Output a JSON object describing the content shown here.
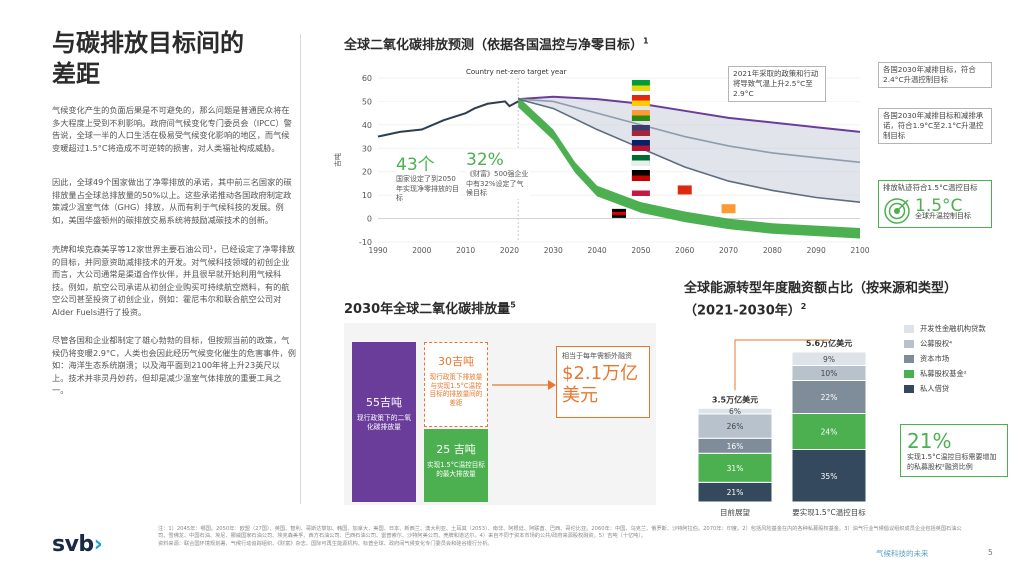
{
  "page": {
    "title_line1": "与碳排放目标间的",
    "title_line2": "差距",
    "paragraphs": [
      "气候变化产生的负面后果是不可避免的，那么问题是普通民众将在多大程度上受到不利影响。政府间气候变化专门委员会（IPCC）警告说，全球一半的人口生活在极易受气候变化影响的地区，而气候变暖超过1.5°C将造成不可逆转的损害，对人类福祉构成威胁。",
      "因此，全球49个国家做出了净零排放的承诺，其中前三名国家的碳排放量占全球总排放量的50%以上。这些承诺推动各国政府制定政策减少温室气体（GHG）排放，从而有利于气候科技的发展。例如，美国华盛顿州的碳排放交易系统将鼓励减碳技术的创新。",
      "壳牌和埃克森美孚等12家世界主要石油公司¹，已经设定了净零排放的目标，并同意资助减排技术的开发。对气候科技领域的初创企业而言，大公司通常是渠道合作伙伴，并且很早就开始利用气候科技。例如，航空公司承诺从初创企业购买可持续航空燃料，有的航空公司甚至投资了初创企业，例如：霍尼韦尔和联合航空公司对Alder Fuels进行了投资。",
      "尽管各国和企业都制定了雄心勃勃的目标，但按照当前的政策，气候仍将变暖2.9°C，人类也会因此经历气候变化催生的危害事件，例如：海洋生态系统崩溃；以及海平面到2100年将上升23英尺以上。技术并非灵丹妙药，但却是减少温室气体排放的重要工具之一。"
    ],
    "logo_main": "svb",
    "logo_chevron": "›",
    "footer_right": "气候科技的未来",
    "page_number": "5",
    "notes": "注：1）2045年：哪国。2050年：欧盟（27国）、英国、智利、哥斯达黎加、韩国、加拿大、美国、日本、新西兰、澳大利亚、土耳其（2053）、南非、阿根廷、阿联酋、巴西、哥伦比亚。2060年：中国、乌克兰、俄罗斯、沙特阿拉伯。2070年：印度。2）包括风险基金在内的各种私募股权基金。3）油气行业气候倡议组织成员企业包括英国石油公司、雪佛龙、中国石油、埃尼、挪威国家石油公司、埃克森美孚、西方石油公司、巴西石油公司、雷普索尔、沙特阿美公司、壳牌和道达尔。4）来自不同于资本市场的公共/政府来源股权融资。5）吉吨（十亿吨）。",
    "source": "资料来源：联合国环境规划署、气候行动追踪组织、《财富》杂志、国际可再生能源机构、标普全球、政府间气候变化专门委员会和硅谷银行分析。"
  },
  "top_chart": {
    "title": "全球二氧化碳排放预测（依据各国温控与净零目标）",
    "title_sup": "1",
    "ylabel": "吉吨",
    "net_zero_label": "Country net-zero target year",
    "callout_2021": "2021年采取的政策和行动将导致气温上升2.5°C至2.9°C",
    "callout_2030_a": "各国2030年减排目标，符合2.4°C升温控制目标",
    "callout_2030_b": "各国2030年减排目标和减排承诺，符合1.9°C至2.1°C升温控制目标",
    "callout_15_title": "排放轨迹符合1.5°C温控目标",
    "target_value": "1.5°C",
    "target_caption": "全球升温控制目标",
    "stat1_value": "43个",
    "stat1_caption": "国家设定了到2050年实现净零排放的目标",
    "stat2_value": "32%",
    "stat2_caption": "《财富》500强企业中有32%设定了气候目标",
    "colors": {
      "history": "#2c3e50",
      "pledges": "#9aa7b8",
      "target15": "#4caf50",
      "policy": "#6a3d9a",
      "accent": "#4caf50"
    }
  },
  "chart_data": [
    {
      "type": "line",
      "title": "全球二氧化碳排放预测（依据各国温控与净零目标）",
      "ylabel": "吉吨",
      "xlim": [
        1990,
        2100
      ],
      "ylim": [
        -10,
        60
      ],
      "x_ticks": [
        1990,
        2000,
        2010,
        2020,
        2030,
        2040,
        2050,
        2060,
        2070,
        2080,
        2090,
        2100
      ],
      "y_ticks": [
        -10,
        0,
        10,
        20,
        30,
        40,
        50,
        60
      ],
      "series": [
        {
          "name": "history",
          "x": [
            1990,
            1995,
            2000,
            2005,
            2010,
            2012,
            2015,
            2019,
            2020,
            2022
          ],
          "y": [
            35,
            37,
            38,
            42,
            45,
            47,
            49,
            50,
            48,
            50
          ]
        },
        {
          "name": "policy",
          "x": [
            2022,
            2030,
            2040,
            2050,
            2060,
            2070,
            2080,
            2090,
            2100
          ],
          "y": [
            51,
            52,
            51,
            49,
            46,
            43,
            41,
            39,
            37
          ]
        },
        {
          "name": "2.4C",
          "x": [
            2022,
            2030,
            2040,
            2050,
            2060,
            2070,
            2080,
            2090,
            2100
          ],
          "y": [
            51,
            50,
            45,
            40,
            35,
            31,
            28,
            26,
            24
          ]
        },
        {
          "name": "1.9-2.1C",
          "x": [
            2022,
            2030,
            2040,
            2050,
            2060,
            2070,
            2080,
            2090,
            2100
          ],
          "y": [
            51,
            47,
            38,
            30,
            22,
            16,
            12,
            9,
            7
          ]
        },
        {
          "name": "1.5C",
          "x": [
            2022,
            2030,
            2035,
            2040,
            2050,
            2060,
            2070,
            2080,
            2090,
            2100
          ],
          "y": [
            50,
            36,
            22,
            12,
            5,
            1,
            -2,
            -4,
            -5,
            -6
          ]
        }
      ]
    },
    {
      "type": "bar",
      "title": "2030年全球二氧化碳排放量",
      "title_sup": "5",
      "categories": [
        "现行政策下的二氧化碳排放量",
        "现行政策下排放量与实现1.5°C温控目标的排放量间的差距",
        "实现1.5°C温控目标的最大排放量"
      ],
      "values": [
        55,
        30,
        25
      ],
      "labels": [
        "55吉吨",
        "30吉吨",
        "25 吉吨"
      ],
      "side_note": "相当于每年需额外融资",
      "side_value": "$2.1万亿美元"
    },
    {
      "type": "bar",
      "title": "全球能源转型年度融资额占比（按来源和类型）（2021-2030年）",
      "title_sup": "2",
      "categories": [
        "目前展望",
        "要实现1.5°C温控目标"
      ],
      "totals": [
        "3.5万亿美元",
        "5.6万亿美元"
      ],
      "total_values": [
        3.5,
        5.6
      ],
      "series": [
        {
          "name": "私人借贷",
          "values": [
            21,
            35
          ],
          "color": "#34495e"
        },
        {
          "name": "私募股权基金",
          "values": [
            31,
            24
          ],
          "color": "#4caf50"
        },
        {
          "name": "资本市场",
          "values": [
            16,
            22
          ],
          "color": "#7f8c9a"
        },
        {
          "name": "公募股权",
          "values": [
            26,
            10
          ],
          "color": "#b8c2cc"
        },
        {
          "name": "开发性金融机构贷款",
          "values": [
            6,
            9
          ],
          "color": "#dde3e8"
        }
      ],
      "legend_names": [
        "开发性金融机构贷款",
        "公募股权⁴",
        "资本市场",
        "私募股权基金²",
        "私人借贷"
      ],
      "highlight_value": "21%",
      "highlight_caption": "实现1.5°C温控目标需要增加的私募股权²融资比例"
    }
  ],
  "flags": [
    "brazil-flag",
    "china-flag",
    "india-flag",
    "usa-flag",
    "uk-flag",
    "saudi-flag",
    "germany-flag",
    "japan-flag"
  ]
}
